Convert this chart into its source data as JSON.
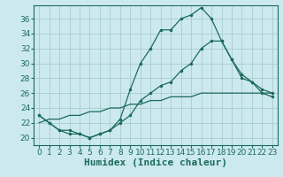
{
  "xlabel": "Humidex (Indice chaleur)",
  "background_color": "#cce9f0",
  "grid_color": "#aacccc",
  "line_color": "#1a6b5a",
  "spine_color": "#1a6b5a",
  "xlim": [
    -0.5,
    23.5
  ],
  "ylim": [
    19.0,
    37.8
  ],
  "xticks": [
    0,
    1,
    2,
    3,
    4,
    5,
    6,
    7,
    8,
    9,
    10,
    11,
    12,
    13,
    14,
    15,
    16,
    17,
    18,
    19,
    20,
    21,
    22,
    23
  ],
  "yticks": [
    20,
    22,
    24,
    26,
    28,
    30,
    32,
    34,
    36
  ],
  "curve1_x": [
    0,
    1,
    2,
    3,
    4,
    5,
    6,
    7,
    8,
    9,
    10,
    11,
    12,
    13,
    14,
    15,
    16,
    17,
    18,
    19,
    20,
    21,
    22,
    23
  ],
  "curve1_y": [
    23,
    22,
    21,
    21,
    20.5,
    20,
    20.5,
    21,
    22.5,
    26.5,
    30,
    32,
    34.5,
    34.5,
    36,
    36.5,
    37.5,
    36,
    33,
    30.5,
    28.5,
    27.5,
    26.5,
    26
  ],
  "curve2_x": [
    0,
    1,
    2,
    3,
    4,
    5,
    6,
    7,
    8,
    9,
    10,
    11,
    12,
    13,
    14,
    15,
    16,
    17,
    18,
    19,
    20,
    21,
    22,
    23
  ],
  "curve2_y": [
    23,
    22,
    21,
    20.5,
    20.5,
    20,
    20.5,
    21,
    22,
    23,
    25,
    26,
    27,
    27.5,
    29,
    30,
    32,
    33,
    33,
    30.5,
    28,
    27.5,
    26,
    25.5
  ],
  "curve3_x": [
    0,
    1,
    2,
    3,
    4,
    5,
    6,
    7,
    8,
    9,
    10,
    11,
    12,
    13,
    14,
    15,
    16,
    17,
    18,
    19,
    20,
    21,
    22,
    23
  ],
  "curve3_y": [
    22,
    22.5,
    22.5,
    23,
    23,
    23.5,
    23.5,
    24,
    24,
    24.5,
    24.5,
    25,
    25,
    25.5,
    25.5,
    25.5,
    26,
    26,
    26,
    26,
    26,
    26,
    26,
    26
  ],
  "fontsize_xlabel": 8,
  "fontsize_tick": 6.5,
  "marker_size": 2.5
}
